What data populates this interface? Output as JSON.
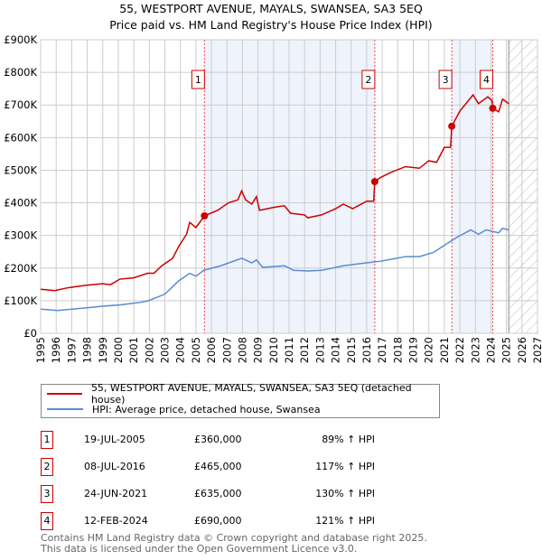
{
  "title": "55, WESTPORT AVENUE, MAYALS, SWANSEA, SA3 5EQ",
  "subtitle": "Price paid vs. HM Land Registry's House Price Index (HPI)",
  "chart_data": {
    "type": "line",
    "xlim": [
      1995,
      2027
    ],
    "ylim": [
      0,
      900000
    ],
    "y_ticks": [
      {
        "v": 0,
        "label": "£0"
      },
      {
        "v": 100000,
        "label": "£100K"
      },
      {
        "v": 200000,
        "label": "£200K"
      },
      {
        "v": 300000,
        "label": "£300K"
      },
      {
        "v": 400000,
        "label": "£400K"
      },
      {
        "v": 500000,
        "label": "£500K"
      },
      {
        "v": 600000,
        "label": "£600K"
      },
      {
        "v": 700000,
        "label": "£700K"
      },
      {
        "v": 800000,
        "label": "£800K"
      },
      {
        "v": 900000,
        "label": "£900K"
      }
    ],
    "x_ticks": [
      "1995",
      "1996",
      "1997",
      "1998",
      "1999",
      "2000",
      "2001",
      "2002",
      "2003",
      "2004",
      "2005",
      "2006",
      "2007",
      "2008",
      "2009",
      "2010",
      "2011",
      "2012",
      "2013",
      "2014",
      "2015",
      "2016",
      "2017",
      "2018",
      "2019",
      "2020",
      "2021",
      "2022",
      "2023",
      "2024",
      "2025",
      "2026",
      "2027"
    ],
    "forecast_start": 2025.15,
    "series": [
      {
        "name": "55, WESTPORT AVENUE, MAYALS, SWANSEA, SA3 5EQ (detached house)",
        "color": "#cc0000",
        "points": [
          [
            1995,
            135
          ],
          [
            1995.9,
            131
          ],
          [
            1996.8,
            140
          ],
          [
            1997.9,
            147
          ],
          [
            1999,
            152
          ],
          [
            1999.5,
            149
          ],
          [
            2000.1,
            166
          ],
          [
            2001,
            170
          ],
          [
            2001.9,
            184
          ],
          [
            2002.3,
            184
          ],
          [
            2002.8,
            207
          ],
          [
            2003.5,
            230
          ],
          [
            2003.9,
            267
          ],
          [
            2004.4,
            304
          ],
          [
            2004.6,
            340
          ],
          [
            2005,
            324
          ],
          [
            2005.55,
            360
          ],
          [
            2006.4,
            377
          ],
          [
            2007.1,
            400
          ],
          [
            2007.7,
            409
          ],
          [
            2007.95,
            437
          ],
          [
            2008.2,
            409
          ],
          [
            2008.6,
            396
          ],
          [
            2008.9,
            419
          ],
          [
            2009.1,
            377
          ],
          [
            2010,
            386
          ],
          [
            2010.7,
            391
          ],
          [
            2011.1,
            368
          ],
          [
            2012,
            363
          ],
          [
            2012.2,
            354
          ],
          [
            2013.1,
            363
          ],
          [
            2014,
            382
          ],
          [
            2014.5,
            396
          ],
          [
            2015.1,
            382
          ],
          [
            2016,
            405
          ],
          [
            2016.45,
            405
          ],
          [
            2016.52,
            465
          ],
          [
            2016.9,
            478
          ],
          [
            2017.6,
            494
          ],
          [
            2018.5,
            511
          ],
          [
            2019.4,
            506
          ],
          [
            2020,
            529
          ],
          [
            2020.5,
            524
          ],
          [
            2021,
            570
          ],
          [
            2021.4,
            570
          ],
          [
            2021.48,
            635
          ],
          [
            2022,
            681
          ],
          [
            2022.85,
            731
          ],
          [
            2023.2,
            704
          ],
          [
            2023.8,
            725
          ],
          [
            2024.08,
            713
          ],
          [
            2024.12,
            690
          ],
          [
            2024.5,
            679
          ],
          [
            2024.75,
            718
          ],
          [
            2025.15,
            704
          ]
        ]
      },
      {
        "name": "HPI: Average price, detached house, Swansea",
        "color": "#5b8bd0",
        "points": [
          [
            1995,
            74
          ],
          [
            1996.1,
            70
          ],
          [
            1997.9,
            78
          ],
          [
            1999,
            83
          ],
          [
            2000.1,
            87
          ],
          [
            2001.3,
            94
          ],
          [
            2001.9,
            99
          ],
          [
            2003,
            120
          ],
          [
            2003.9,
            161
          ],
          [
            2004.6,
            184
          ],
          [
            2005,
            175
          ],
          [
            2005.5,
            193
          ],
          [
            2006.6,
            207
          ],
          [
            2007.95,
            230
          ],
          [
            2008.6,
            216
          ],
          [
            2008.9,
            225
          ],
          [
            2009.3,
            202
          ],
          [
            2010.7,
            207
          ],
          [
            2011.3,
            193
          ],
          [
            2012.2,
            191
          ],
          [
            2013.1,
            193
          ],
          [
            2014.5,
            207
          ],
          [
            2016,
            216
          ],
          [
            2016.9,
            221
          ],
          [
            2018.5,
            235
          ],
          [
            2019.4,
            235
          ],
          [
            2020.3,
            248
          ],
          [
            2021.2,
            276
          ],
          [
            2021.8,
            294
          ],
          [
            2022.7,
            317
          ],
          [
            2023.2,
            304
          ],
          [
            2023.7,
            317
          ],
          [
            2024.5,
            308
          ],
          [
            2024.75,
            322
          ],
          [
            2025.15,
            317
          ]
        ]
      }
    ],
    "sales": [
      {
        "n": "1",
        "x": 2005.55,
        "price": 360000
      },
      {
        "n": "2",
        "x": 2016.52,
        "price": 465000
      },
      {
        "n": "3",
        "x": 2021.48,
        "price": 635000
      },
      {
        "n": "4",
        "x": 2024.12,
        "price": 690000
      }
    ]
  },
  "legend": {
    "property": "55, WESTPORT AVENUE, MAYALS, SWANSEA, SA3 5EQ (detached house)",
    "hpi": "HPI: Average price, detached house, Swansea"
  },
  "table": [
    {
      "n": "1",
      "date": "19-JUL-2005",
      "price": "£360,000",
      "hpi": "89% ↑ HPI"
    },
    {
      "n": "2",
      "date": "08-JUL-2016",
      "price": "£465,000",
      "hpi": "117% ↑ HPI"
    },
    {
      "n": "3",
      "date": "24-JUN-2021",
      "price": "£635,000",
      "hpi": "130% ↑ HPI"
    },
    {
      "n": "4",
      "date": "12-FEB-2024",
      "price": "£690,000",
      "hpi": "121% ↑ HPI"
    }
  ],
  "footer": {
    "line1": "Contains HM Land Registry data © Crown copyright and database right 2025.",
    "line2": "This data is licensed under the Open Government Licence v3.0."
  }
}
